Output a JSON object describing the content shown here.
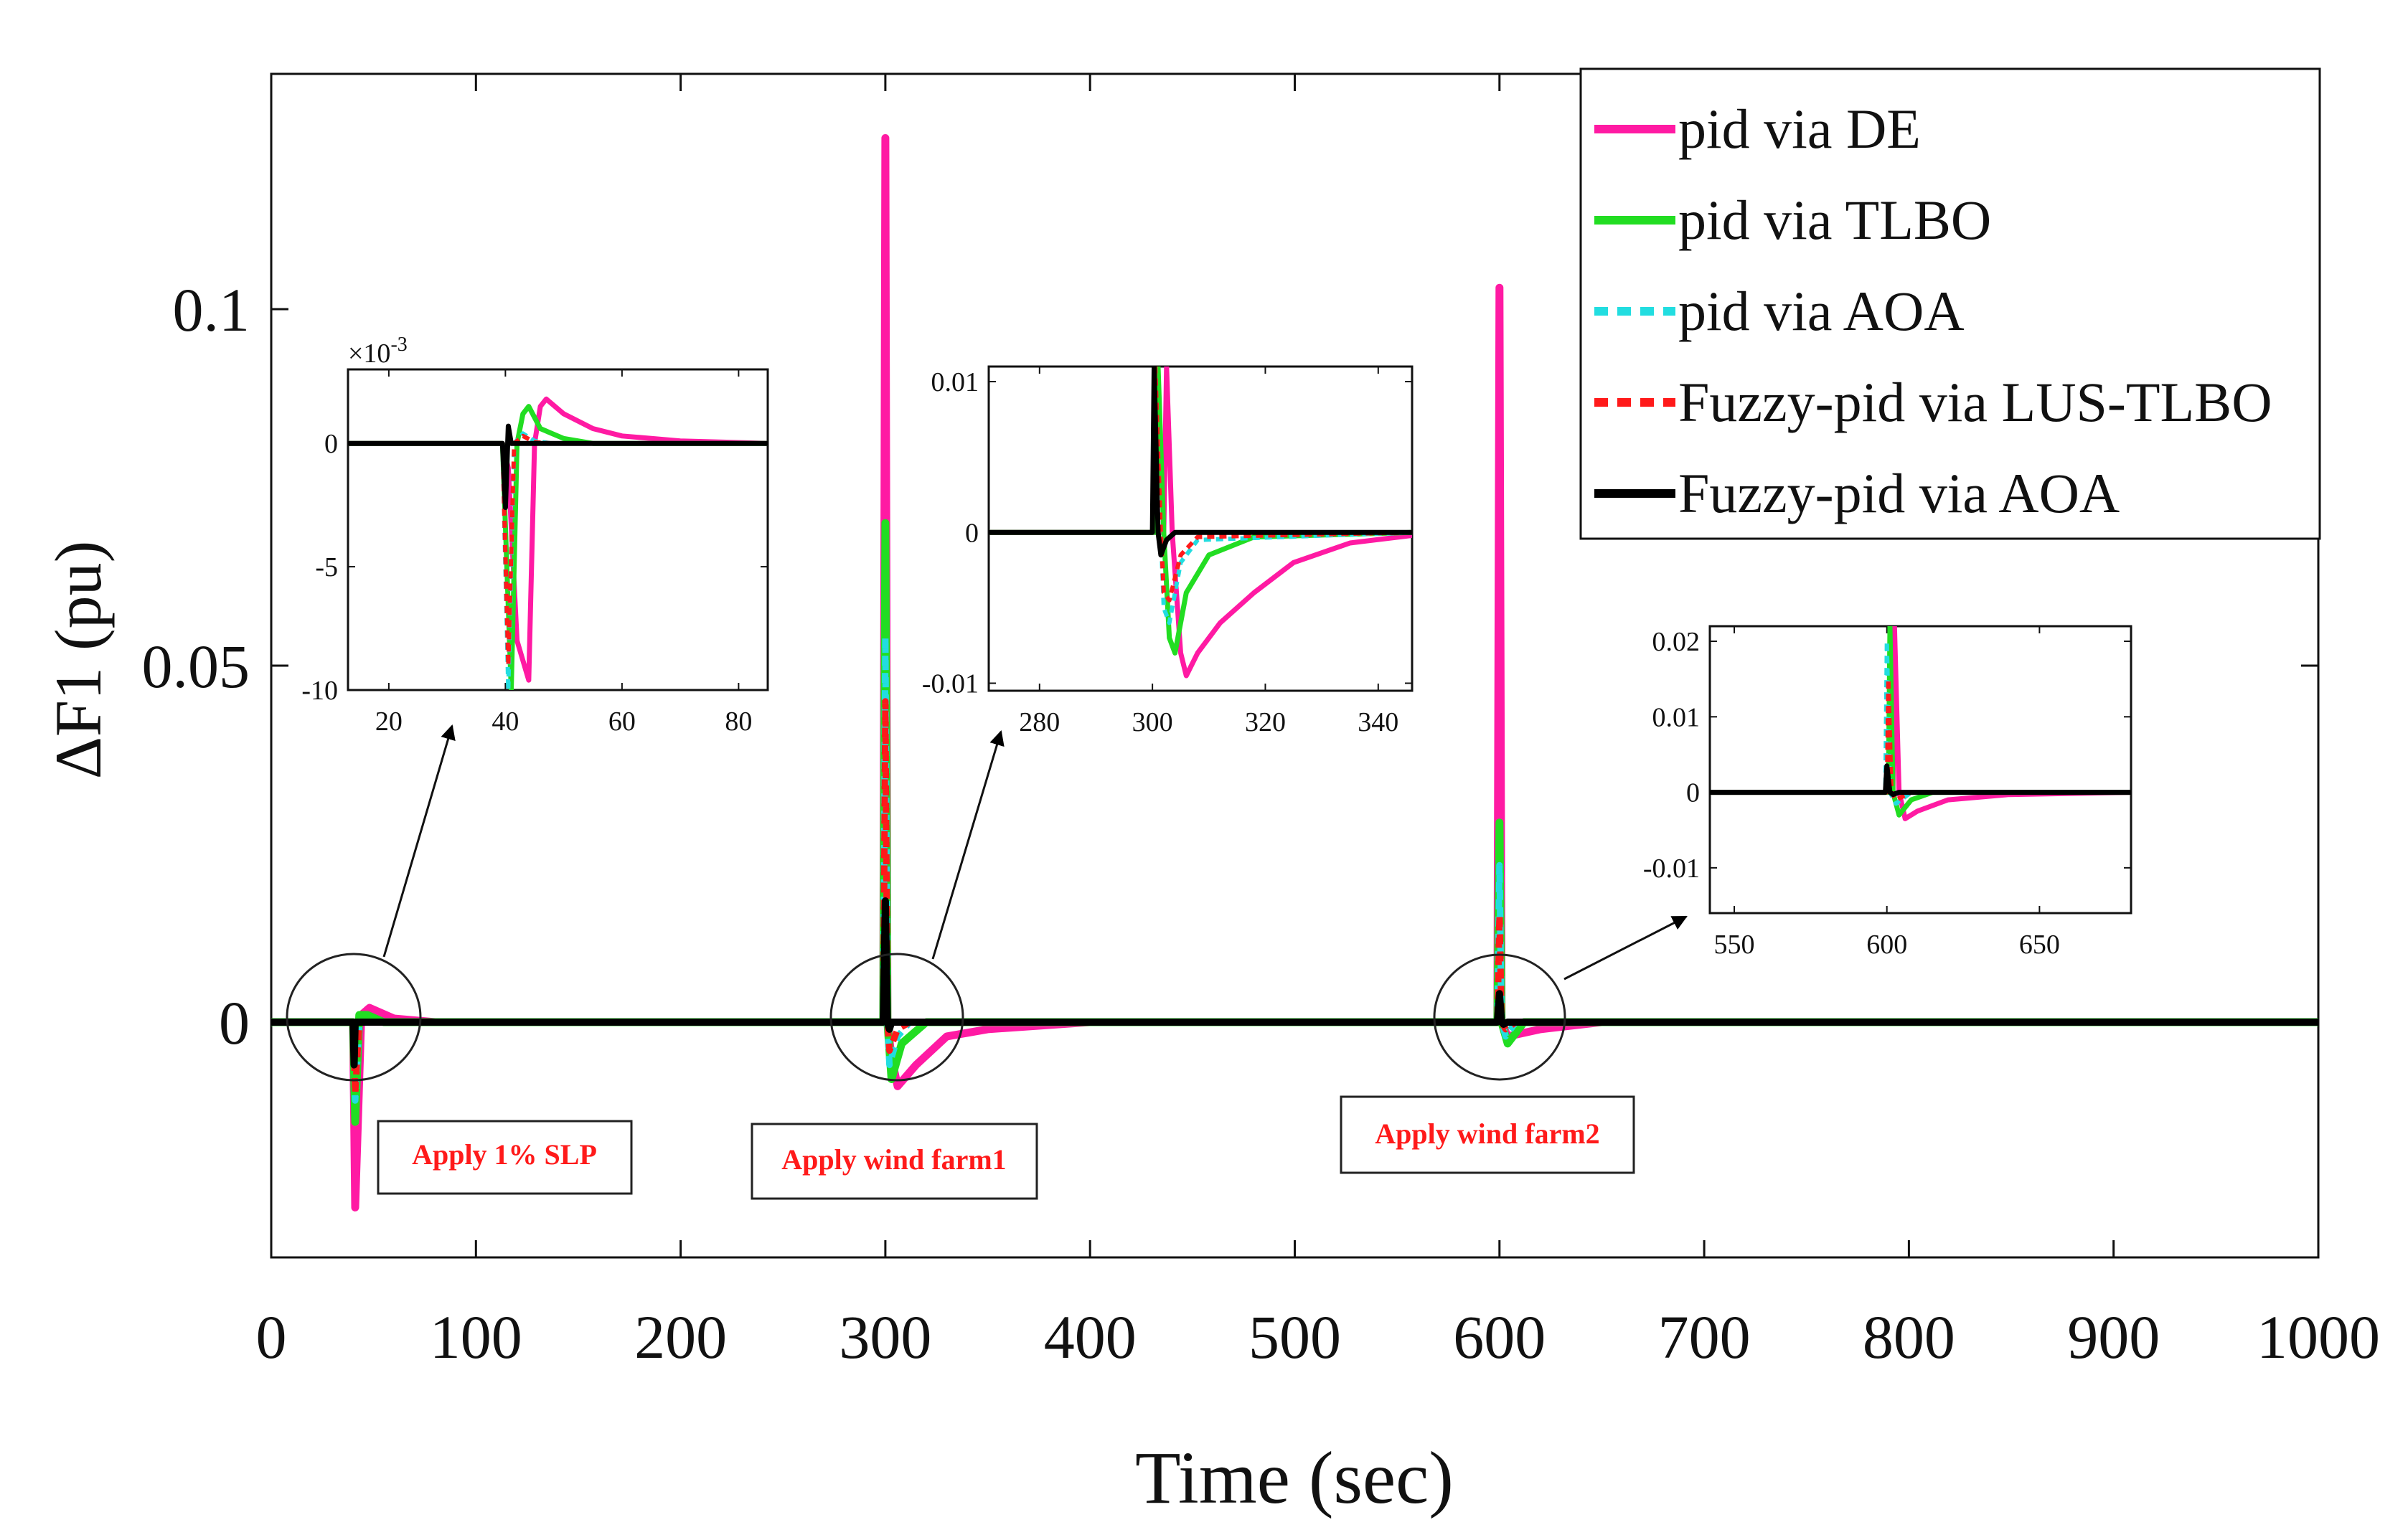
{
  "chart_data": {
    "type": "line",
    "title": "",
    "xlabel": "Time (sec)",
    "ylabel": "ΔF1 (pu)",
    "xlim": [
      0,
      1000
    ],
    "ylim": [
      -0.033,
      0.133
    ],
    "xticks": [
      0,
      100,
      200,
      300,
      400,
      500,
      600,
      700,
      800,
      900,
      1000
    ],
    "yticks": [
      0,
      0.05,
      0.1
    ],
    "ytick_labels": [
      "0",
      "0.05",
      "0.1"
    ],
    "grid": false,
    "legend_position": "top-right",
    "series": [
      {
        "name": "pid via DE",
        "color": "#ff1aa3",
        "style": "solid",
        "points": [
          [
            0,
            0
          ],
          [
            40,
            0
          ],
          [
            41,
            -0.026
          ],
          [
            44,
            0.001
          ],
          [
            48,
            0.002
          ],
          [
            60,
            0.0005
          ],
          [
            80,
            0
          ],
          [
            299,
            0
          ],
          [
            300,
            0.124
          ],
          [
            301,
            0
          ],
          [
            303,
            -0.005
          ],
          [
            306,
            -0.009
          ],
          [
            315,
            -0.006
          ],
          [
            330,
            -0.002
          ],
          [
            350,
            -0.001
          ],
          [
            400,
            0
          ],
          [
            599,
            0
          ],
          [
            600,
            0.103
          ],
          [
            601,
            0
          ],
          [
            604,
            -0.002
          ],
          [
            620,
            -0.001
          ],
          [
            650,
            0
          ],
          [
            1000,
            0
          ]
        ]
      },
      {
        "name": "pid via TLBO",
        "color": "#22dd22",
        "style": "solid",
        "points": [
          [
            0,
            0
          ],
          [
            40,
            0
          ],
          [
            41,
            -0.014
          ],
          [
            43,
            0.001
          ],
          [
            47,
            0.001
          ],
          [
            55,
            0
          ],
          [
            299,
            0
          ],
          [
            300,
            0.07
          ],
          [
            301,
            0
          ],
          [
            303,
            -0.008
          ],
          [
            308,
            -0.003
          ],
          [
            320,
            0
          ],
          [
            599,
            0
          ],
          [
            600,
            0.028
          ],
          [
            601,
            0
          ],
          [
            604,
            -0.003
          ],
          [
            612,
            0
          ],
          [
            1000,
            0
          ]
        ]
      },
      {
        "name": "pid via AOA",
        "color": "#22dde0",
        "style": "dotted",
        "points": [
          [
            0,
            0
          ],
          [
            40,
            0
          ],
          [
            41,
            -0.011
          ],
          [
            43,
            0
          ],
          [
            299,
            0
          ],
          [
            300,
            0.054
          ],
          [
            301,
            0
          ],
          [
            302,
            -0.006
          ],
          [
            306,
            -0.002
          ],
          [
            312,
            0
          ],
          [
            599,
            0
          ],
          [
            600,
            0.022
          ],
          [
            601,
            0
          ],
          [
            603,
            -0.002
          ],
          [
            608,
            0
          ],
          [
            1000,
            0
          ]
        ]
      },
      {
        "name": "Fuzzy-pid via LUS-TLBO",
        "color": "#ff1a1a",
        "style": "dotted",
        "points": [
          [
            0,
            0
          ],
          [
            40,
            0
          ],
          [
            41,
            -0.01
          ],
          [
            43,
            0
          ],
          [
            299,
            0
          ],
          [
            300,
            0.045
          ],
          [
            301,
            0
          ],
          [
            302,
            -0.004
          ],
          [
            306,
            -0.001
          ],
          [
            312,
            0
          ],
          [
            599,
            0
          ],
          [
            600,
            0.015
          ],
          [
            601,
            0
          ],
          [
            603,
            -0.001
          ],
          [
            608,
            0
          ],
          [
            1000,
            0
          ]
        ]
      },
      {
        "name": "Fuzzy-pid via AOA",
        "color": "#000000",
        "style": "solid",
        "points": [
          [
            0,
            0
          ],
          [
            40,
            0
          ],
          [
            40.5,
            -0.006
          ],
          [
            41,
            0
          ],
          [
            299,
            0
          ],
          [
            300,
            0.017
          ],
          [
            301,
            0
          ],
          [
            302,
            -0.001
          ],
          [
            303,
            0
          ],
          [
            599,
            0
          ],
          [
            600,
            0.004
          ],
          [
            601,
            0
          ],
          [
            602,
            -0.0003
          ],
          [
            604,
            0
          ],
          [
            1000,
            0
          ]
        ]
      }
    ],
    "annotations": [
      "Apply 1% SLP",
      "Apply wind farm1",
      "Apply wind farm2"
    ],
    "insets": [
      {
        "xlim": [
          13,
          85
        ],
        "ylim": [
          -10,
          3
        ],
        "xticks": [
          20,
          40,
          60,
          80
        ],
        "yticks": [
          0,
          -5,
          -10
        ],
        "ytick_labels": [
          "0",
          "-5",
          "-10"
        ],
        "exponent_label": "×10",
        "exponent_power": "-3",
        "series": [
          {
            "points": [
              [
                13,
                0
              ],
              [
                39.5,
                0
              ],
              [
                40.5,
                -1
              ],
              [
                42,
                -8
              ],
              [
                44,
                -9.6
              ],
              [
                45,
                0
              ],
              [
                46,
                1.5
              ],
              [
                47,
                1.8
              ],
              [
                50,
                1.2
              ],
              [
                55,
                0.6
              ],
              [
                60,
                0.3
              ],
              [
                70,
                0.1
              ],
              [
                85,
                0
              ]
            ]
          },
          {
            "points": [
              [
                13,
                0
              ],
              [
                39.5,
                0
              ],
              [
                41,
                -10
              ],
              [
                42,
                0
              ],
              [
                43,
                1.2
              ],
              [
                44,
                1.5
              ],
              [
                46,
                0.6
              ],
              [
                50,
                0.2
              ],
              [
                55,
                0
              ],
              [
                85,
                0
              ]
            ]
          },
          {
            "points": [
              [
                13,
                0
              ],
              [
                39.5,
                0
              ],
              [
                40.5,
                -10
              ],
              [
                41.5,
                0
              ],
              [
                43,
                0.4
              ],
              [
                45,
                0.1
              ],
              [
                48,
                0
              ],
              [
                85,
                0
              ]
            ]
          },
          {
            "points": [
              [
                13,
                0
              ],
              [
                39.5,
                0
              ],
              [
                40.5,
                -9
              ],
              [
                41.5,
                0
              ],
              [
                43,
                0.3
              ],
              [
                45,
                0.05
              ],
              [
                48,
                0
              ],
              [
                85,
                0
              ]
            ]
          },
          {
            "points": [
              [
                13,
                0
              ],
              [
                39.5,
                0
              ],
              [
                40,
                -2.6
              ],
              [
                40.5,
                0.7
              ],
              [
                41,
                0
              ],
              [
                85,
                0
              ]
            ]
          }
        ]
      },
      {
        "xlim": [
          271,
          346
        ],
        "ylim": [
          -0.0105,
          0.011
        ],
        "xticks": [
          280,
          300,
          320,
          340
        ],
        "yticks": [
          0.01,
          0,
          -0.01
        ],
        "ytick_labels": [
          "0.01",
          "0",
          "-0.01"
        ],
        "series": [
          {
            "points": [
              [
                271,
                0
              ],
              [
                302,
                0
              ],
              [
                302.5,
                0.011
              ],
              [
                303.5,
                0
              ],
              [
                305,
                -0.008
              ],
              [
                306,
                -0.0095
              ],
              [
                308,
                -0.008
              ],
              [
                312,
                -0.006
              ],
              [
                318,
                -0.004
              ],
              [
                325,
                -0.002
              ],
              [
                335,
                -0.0007
              ],
              [
                346,
                -0.0002
              ]
            ]
          },
          {
            "points": [
              [
                271,
                0
              ],
              [
                300.5,
                0
              ],
              [
                301,
                0.011
              ],
              [
                302,
                0
              ],
              [
                303,
                -0.007
              ],
              [
                304,
                -0.008
              ],
              [
                306,
                -0.004
              ],
              [
                310,
                -0.0015
              ],
              [
                318,
                -0.0003
              ],
              [
                346,
                0
              ]
            ]
          },
          {
            "points": [
              [
                271,
                0
              ],
              [
                300,
                0
              ],
              [
                300.5,
                0.011
              ],
              [
                301.5,
                0
              ],
              [
                302,
                -0.005
              ],
              [
                303,
                -0.006
              ],
              [
                305,
                -0.002
              ],
              [
                308,
                -0.0005
              ],
              [
                346,
                0
              ]
            ]
          },
          {
            "points": [
              [
                271,
                0
              ],
              [
                300,
                0
              ],
              [
                300.5,
                0.011
              ],
              [
                301.5,
                0
              ],
              [
                302,
                -0.004
              ],
              [
                303,
                -0.0045
              ],
              [
                305,
                -0.0015
              ],
              [
                308,
                -0.0003
              ],
              [
                346,
                0
              ]
            ]
          },
          {
            "points": [
              [
                271,
                0
              ],
              [
                300,
                0
              ],
              [
                300.3,
                0.011
              ],
              [
                301,
                0
              ],
              [
                301.5,
                -0.0015
              ],
              [
                302.5,
                -0.0005
              ],
              [
                304,
                0
              ],
              [
                346,
                0
              ]
            ]
          }
        ]
      },
      {
        "xlim": [
          542,
          680
        ],
        "ylim": [
          -0.016,
          0.022
        ],
        "xticks": [
          550,
          600,
          650
        ],
        "yticks": [
          0.02,
          0.01,
          0,
          -0.01
        ],
        "ytick_labels": [
          "0.02",
          "0.01",
          "0",
          "-0.01"
        ],
        "series": [
          {
            "points": [
              [
                542,
                0
              ],
              [
                602,
                0
              ],
              [
                602.5,
                0.022
              ],
              [
                604,
                0
              ],
              [
                606,
                -0.0035
              ],
              [
                610,
                -0.0025
              ],
              [
                620,
                -0.001
              ],
              [
                640,
                -0.0003
              ],
              [
                680,
                0
              ]
            ]
          },
          {
            "points": [
              [
                542,
                0
              ],
              [
                600.5,
                0
              ],
              [
                601,
                0.022
              ],
              [
                602,
                0
              ],
              [
                604,
                -0.003
              ],
              [
                608,
                -0.001
              ],
              [
                615,
                0
              ],
              [
                680,
                0
              ]
            ]
          },
          {
            "points": [
              [
                542,
                0
              ],
              [
                599.5,
                0
              ],
              [
                600,
                0.02
              ],
              [
                601,
                0
              ],
              [
                603,
                -0.0015
              ],
              [
                608,
                0
              ],
              [
                680,
                0
              ]
            ]
          },
          {
            "points": [
              [
                542,
                0
              ],
              [
                600,
                0
              ],
              [
                600.5,
                0.015
              ],
              [
                601.5,
                0
              ],
              [
                603,
                -0.001
              ],
              [
                608,
                0
              ],
              [
                680,
                0
              ]
            ]
          },
          {
            "points": [
              [
                542,
                0
              ],
              [
                599.5,
                0
              ],
              [
                600,
                0.0035
              ],
              [
                601,
                0
              ],
              [
                602,
                -0.0003
              ],
              [
                604,
                0
              ],
              [
                680,
                0
              ]
            ]
          }
        ]
      }
    ]
  }
}
